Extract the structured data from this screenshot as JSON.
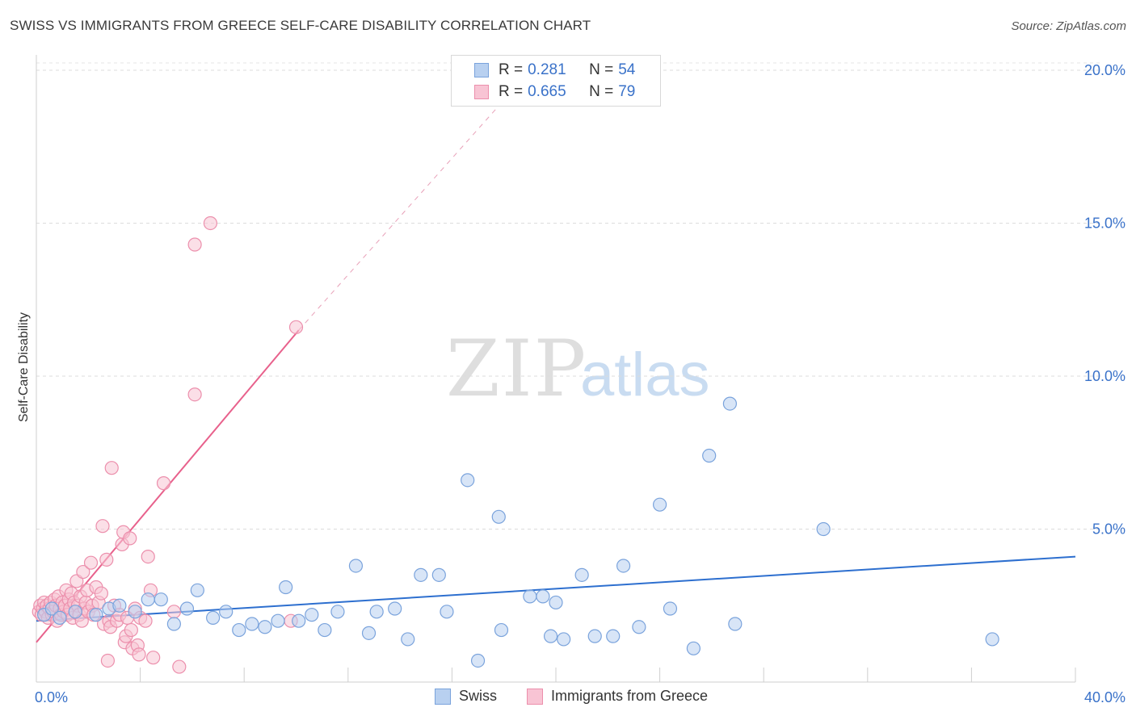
{
  "title": "SWISS VS IMMIGRANTS FROM GREECE SELF-CARE DISABILITY CORRELATION CHART",
  "source": "Source: ZipAtlas.com",
  "watermark": {
    "zip": "ZIP",
    "atlas": "atlas"
  },
  "legend": {
    "r_label": "R =",
    "n_label": "N =",
    "rows": [
      {
        "r": "0.281",
        "n": "54",
        "fill": "#b8d0f0",
        "stroke": "#7aa3dc"
      },
      {
        "r": "0.665",
        "n": "79",
        "fill": "#f8c4d4",
        "stroke": "#ec8fac"
      }
    ]
  },
  "bottom_legend": [
    "Swiss",
    "Immigrants from Greece"
  ],
  "chart_data": {
    "type": "scatter",
    "title": "SWISS VS IMMIGRANTS FROM GREECE SELF-CARE DISABILITY CORRELATION CHART",
    "xlabel": "",
    "ylabel": "Self-Care Disability",
    "xlim": [
      0,
      40
    ],
    "ylim": [
      0,
      20.5
    ],
    "x_tick_labels": [
      "0.0%",
      "40.0%"
    ],
    "y_ticks": [
      5,
      10,
      15,
      20
    ],
    "y_tick_labels": [
      "5.0%",
      "10.0%",
      "15.0%",
      "20.0%"
    ],
    "grid": true,
    "legend_position": "top-center",
    "series": [
      {
        "name": "Swiss",
        "color": "#7aa3dc",
        "fill": "#b8d0f0",
        "trend_color": "#2d6fcf",
        "trend": {
          "x0": 0,
          "y0": 2.0,
          "x1": 40,
          "y1": 4.1
        },
        "points": [
          [
            0.3,
            2.2
          ],
          [
            0.6,
            2.4
          ],
          [
            0.9,
            2.1
          ],
          [
            1.5,
            2.3
          ],
          [
            2.3,
            2.2
          ],
          [
            2.8,
            2.4
          ],
          [
            3.2,
            2.5
          ],
          [
            3.8,
            2.3
          ],
          [
            4.3,
            2.7
          ],
          [
            4.8,
            2.7
          ],
          [
            5.3,
            1.9
          ],
          [
            5.8,
            2.4
          ],
          [
            6.2,
            3.0
          ],
          [
            6.8,
            2.1
          ],
          [
            7.3,
            2.3
          ],
          [
            7.8,
            1.7
          ],
          [
            8.3,
            1.9
          ],
          [
            8.8,
            1.8
          ],
          [
            9.3,
            2.0
          ],
          [
            9.6,
            3.1
          ],
          [
            10.1,
            2.0
          ],
          [
            10.6,
            2.2
          ],
          [
            11.1,
            1.7
          ],
          [
            11.6,
            2.3
          ],
          [
            12.3,
            3.8
          ],
          [
            12.8,
            1.6
          ],
          [
            13.1,
            2.3
          ],
          [
            13.8,
            2.4
          ],
          [
            14.3,
            1.4
          ],
          [
            14.8,
            3.5
          ],
          [
            15.5,
            3.5
          ],
          [
            15.8,
            2.3
          ],
          [
            16.6,
            6.6
          ],
          [
            17.0,
            0.7
          ],
          [
            17.8,
            5.4
          ],
          [
            17.9,
            1.7
          ],
          [
            19.0,
            2.8
          ],
          [
            19.5,
            2.8
          ],
          [
            19.8,
            1.5
          ],
          [
            20.0,
            2.6
          ],
          [
            20.3,
            1.4
          ],
          [
            21.0,
            3.5
          ],
          [
            21.5,
            1.5
          ],
          [
            22.2,
            1.5
          ],
          [
            22.6,
            3.8
          ],
          [
            23.2,
            1.8
          ],
          [
            24.0,
            5.8
          ],
          [
            24.4,
            2.4
          ],
          [
            25.3,
            1.1
          ],
          [
            25.9,
            7.4
          ],
          [
            26.7,
            9.1
          ],
          [
            26.9,
            1.9
          ],
          [
            30.3,
            5.0
          ],
          [
            36.8,
            1.4
          ]
        ]
      },
      {
        "name": "Immigrants from Greece",
        "color": "#ec8fac",
        "fill": "#f8c4d4",
        "trend_color": "#e8618c",
        "trend": {
          "x0": 0,
          "y0": 1.3,
          "x1": 10.1,
          "y1": 11.5
        },
        "trend_extension": {
          "x0": 10.1,
          "y0": 11.5,
          "x1": 18.5,
          "y1": 19.5
        },
        "points": [
          [
            0.1,
            2.3
          ],
          [
            0.15,
            2.5
          ],
          [
            0.2,
            2.2
          ],
          [
            0.25,
            2.4
          ],
          [
            0.3,
            2.6
          ],
          [
            0.35,
            2.3
          ],
          [
            0.4,
            2.5
          ],
          [
            0.45,
            2.1
          ],
          [
            0.5,
            2.4
          ],
          [
            0.55,
            2.6
          ],
          [
            0.6,
            2.2
          ],
          [
            0.65,
            2.3
          ],
          [
            0.7,
            2.7
          ],
          [
            0.75,
            2.5
          ],
          [
            0.8,
            2.0
          ],
          [
            0.85,
            2.8
          ],
          [
            0.9,
            2.4
          ],
          [
            0.95,
            2.2
          ],
          [
            1.0,
            2.6
          ],
          [
            1.05,
            2.3
          ],
          [
            1.1,
            2.5
          ],
          [
            1.15,
            3.0
          ],
          [
            1.2,
            2.2
          ],
          [
            1.25,
            2.7
          ],
          [
            1.3,
            2.4
          ],
          [
            1.35,
            2.9
          ],
          [
            1.4,
            2.1
          ],
          [
            1.45,
            2.6
          ],
          [
            1.5,
            2.3
          ],
          [
            1.55,
            3.3
          ],
          [
            1.6,
            2.5
          ],
          [
            1.65,
            2.2
          ],
          [
            1.7,
            2.8
          ],
          [
            1.75,
            2.0
          ],
          [
            1.8,
            3.6
          ],
          [
            1.85,
            2.4
          ],
          [
            1.9,
            2.6
          ],
          [
            1.95,
            3.0
          ],
          [
            2.0,
            2.3
          ],
          [
            2.1,
            3.9
          ],
          [
            2.15,
            2.5
          ],
          [
            2.2,
            2.2
          ],
          [
            2.3,
            3.1
          ],
          [
            2.4,
            2.6
          ],
          [
            2.5,
            2.9
          ],
          [
            2.55,
            5.1
          ],
          [
            2.6,
            1.9
          ],
          [
            2.7,
            4.0
          ],
          [
            2.75,
            0.7
          ],
          [
            2.8,
            2.0
          ],
          [
            2.85,
            1.8
          ],
          [
            2.9,
            7.0
          ],
          [
            3.0,
            2.5
          ],
          [
            3.1,
            2.0
          ],
          [
            3.2,
            2.2
          ],
          [
            3.3,
            4.5
          ],
          [
            3.35,
            4.9
          ],
          [
            3.4,
            1.3
          ],
          [
            3.45,
            1.5
          ],
          [
            3.5,
            2.1
          ],
          [
            3.6,
            4.7
          ],
          [
            3.65,
            1.7
          ],
          [
            3.7,
            1.1
          ],
          [
            3.8,
            2.4
          ],
          [
            3.9,
            1.2
          ],
          [
            3.95,
            0.9
          ],
          [
            4.0,
            2.1
          ],
          [
            4.2,
            2.0
          ],
          [
            4.3,
            4.1
          ],
          [
            4.4,
            3.0
          ],
          [
            4.5,
            0.8
          ],
          [
            4.9,
            6.5
          ],
          [
            5.3,
            2.3
          ],
          [
            5.5,
            0.5
          ],
          [
            6.1,
            9.4
          ],
          [
            6.1,
            14.3
          ],
          [
            6.7,
            15.0
          ],
          [
            9.8,
            2.0
          ],
          [
            10.0,
            11.6
          ]
        ]
      }
    ]
  }
}
